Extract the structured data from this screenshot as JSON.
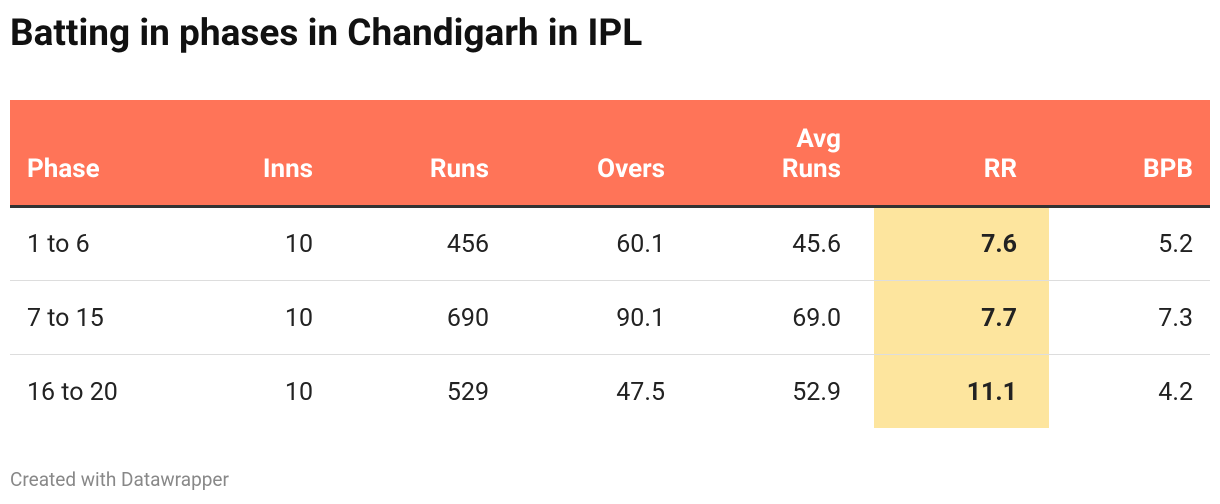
{
  "title": "Batting in phases in Chandigarh in IPL",
  "table": {
    "header": [
      "Phase",
      "Inns",
      "Runs",
      "Overs",
      "Avg Runs",
      "RR",
      "BPB"
    ],
    "rows": [
      [
        "1 to 6",
        "10",
        "456",
        "60.1",
        "45.6",
        "7.6",
        "5.2"
      ],
      [
        "7 to 15",
        "10",
        "690",
        "90.1",
        "69.0",
        "7.7",
        "7.3"
      ],
      [
        "16 to 20",
        "10",
        "529",
        "47.5",
        "52.9",
        "11.1",
        "4.2"
      ]
    ]
  },
  "footer": "Created with Datawrapper"
}
